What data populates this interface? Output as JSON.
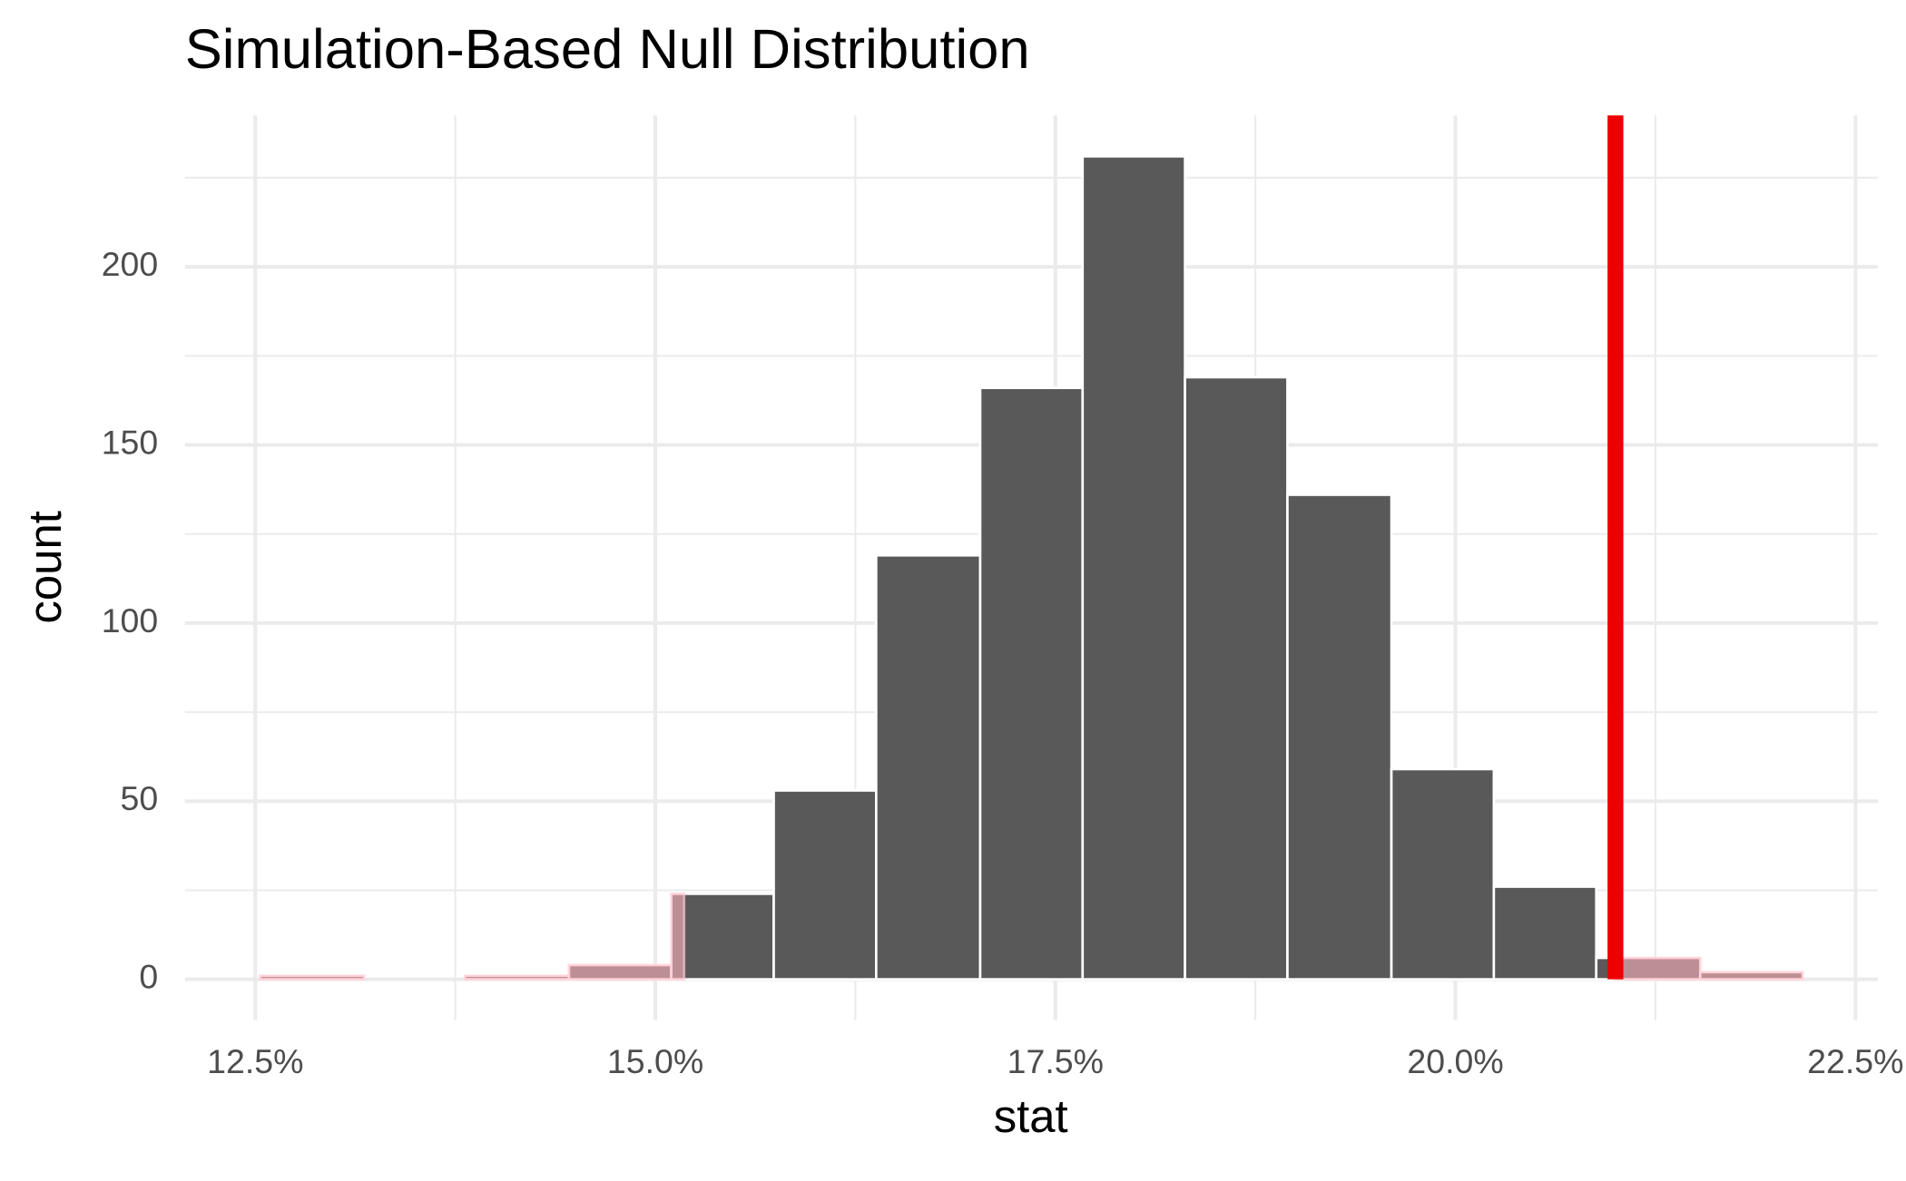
{
  "chart_data": {
    "type": "histogram",
    "title": "Simulation-Based Null Distribution",
    "x_label": "stat",
    "y_label": "count",
    "bins": [
      12.53,
      13.18,
      13.81,
      14.46,
      15.1,
      15.74,
      16.38,
      17.03,
      17.67,
      18.31,
      18.95,
      19.6,
      20.24,
      20.88,
      21.53,
      22.17
    ],
    "values": [
      1,
      0,
      1,
      4,
      24,
      53,
      119,
      166,
      231,
      169,
      136,
      59,
      26,
      6,
      2
    ],
    "color": "#595959",
    "xlim": [
      12.06,
      22.64
    ],
    "xticks": [
      {
        "value": 12.5,
        "label": "12.5%"
      },
      {
        "value": 15.0,
        "label": "15.0%"
      },
      {
        "value": 17.5,
        "label": "17.5%"
      },
      {
        "value": 20.0,
        "label": "20.0%"
      },
      {
        "value": 22.5,
        "label": "22.5%"
      }
    ],
    "ylim": [
      -11.5,
      242.5
    ],
    "yticks": [
      0,
      50,
      100,
      150,
      200
    ],
    "grid": true,
    "vline": {
      "value": 21.0,
      "color": "#ee0000"
    },
    "shade_regions": [
      {
        "to": 15.18
      },
      {
        "from": 21.0
      }
    ],
    "shade_color": "rgba(255,180,190,0.6)"
  }
}
